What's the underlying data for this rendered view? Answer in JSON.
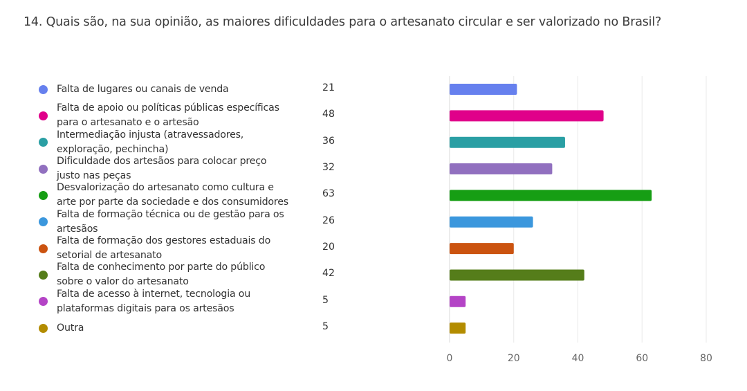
{
  "title": "14. Quais são, na sua opinião, as maiores dificuldades para o artesanato circular e ser valorizado no Brasil?",
  "chart_data": {
    "type": "bar",
    "orientation": "horizontal",
    "title": "14. Quais são, na sua opinião, as maiores dificuldades para o artesanato circular e ser valorizado no Brasil?",
    "xlabel": "",
    "ylabel": "",
    "xlim": [
      0,
      80
    ],
    "xticks": [
      "0",
      "20",
      "40",
      "60",
      "80"
    ],
    "grid": true,
    "legend": "left",
    "categories": [
      "Falta de lugares ou canais de venda",
      "Falta de apoio ou políticas públicas específicas para o artesanato e o artesão",
      "Intermediação injusta (atravessadores, exploração, pechincha)",
      "Dificuldade dos artesãos para colocar preço justo nas peças",
      "Desvalorização do artesanato como cultura e arte por parte da sociedade e dos consumidores",
      "Falta de formação técnica ou de gestão para os artesãos",
      "Falta de formação dos gestores estaduais do setorial de artesanato",
      "Falta de conhecimento por parte do público sobre o valor do artesanato",
      "Falta de acesso à internet, tecnologia ou plataformas digitais para os artesãos",
      "Outra"
    ],
    "values": [
      21,
      48,
      36,
      32,
      63,
      26,
      20,
      42,
      5,
      5
    ],
    "colors": [
      "#6680ee",
      "#e0008a",
      "#2a9fa4",
      "#9170bf",
      "#169e14",
      "#3b97dd",
      "#cb5310",
      "#557d1a",
      "#b444c6",
      "#b38c00"
    ],
    "items": [
      {
        "lines": [
          "Falta de lugares ou canais de venda"
        ],
        "count": "21"
      },
      {
        "lines": [
          "Falta de apoio ou políticas públicas específicas",
          "para o artesanato e o artesão"
        ],
        "count": "48"
      },
      {
        "lines": [
          "Intermediação injusta (atravessadores,",
          "exploração, pechincha)"
        ],
        "count": "36"
      },
      {
        "lines": [
          "Dificuldade dos artesãos para colocar preço",
          "justo nas peças"
        ],
        "count": "32"
      },
      {
        "lines": [
          "Desvalorização do artesanato como cultura e",
          "arte por parte da sociedade e dos consumidores"
        ],
        "count": "63"
      },
      {
        "lines": [
          "Falta de formação técnica ou de gestão para os",
          "artesãos"
        ],
        "count": "26"
      },
      {
        "lines": [
          "Falta de formação dos gestores estaduais do",
          "setorial de artesanato"
        ],
        "count": "20"
      },
      {
        "lines": [
          "Falta de conhecimento por parte do público",
          "sobre o valor do artesanato"
        ],
        "count": "42"
      },
      {
        "lines": [
          "Falta de acesso à internet, tecnologia ou",
          "plataformas digitais para os artesãos"
        ],
        "count": "5"
      },
      {
        "lines": [
          "Outra"
        ],
        "count": "5"
      }
    ]
  }
}
